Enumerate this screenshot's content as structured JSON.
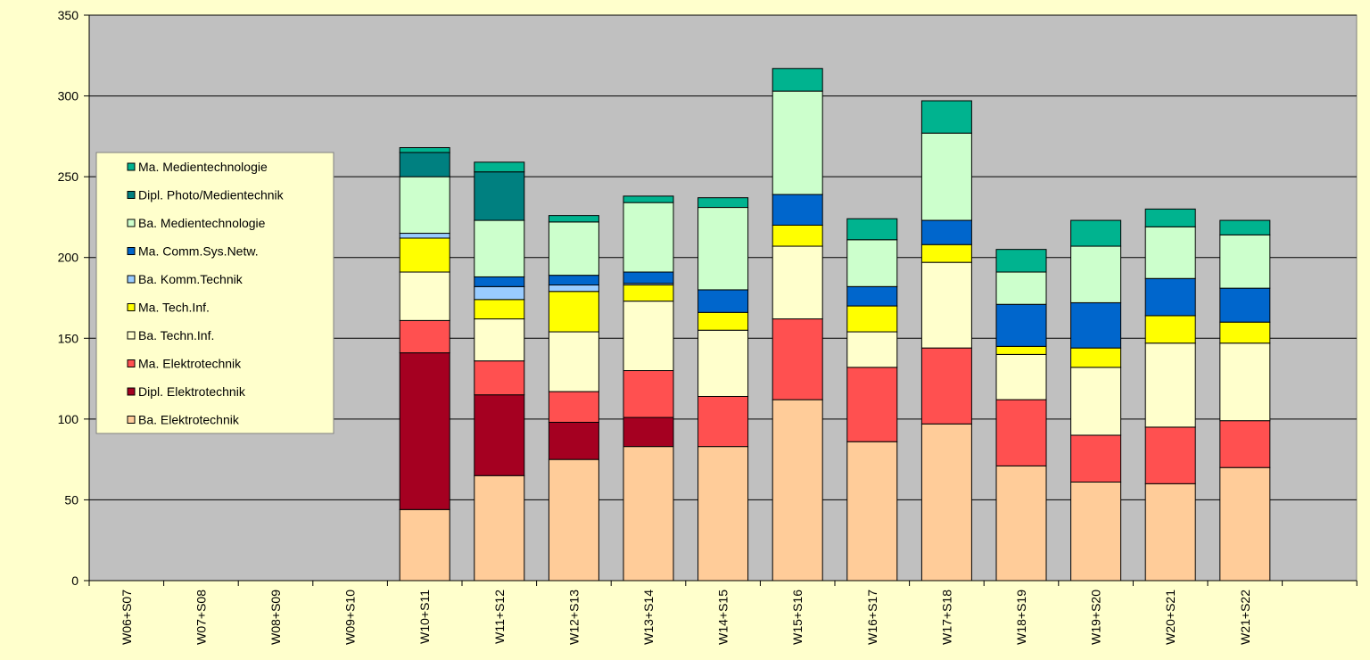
{
  "chart_data": {
    "type": "bar",
    "stacked": true,
    "title": "",
    "xlabel": "",
    "ylabel": "",
    "ylim": [
      0,
      350
    ],
    "yticks": [
      0,
      50,
      100,
      150,
      200,
      250,
      300,
      350
    ],
    "grid": true,
    "legend_position": "left",
    "categories": [
      "W06+S07",
      "W07+S08",
      "W08+S09",
      "W09+S10",
      "W10+S11",
      "W11+S12",
      "W12+S13",
      "W13+S14",
      "W14+S15",
      "W15+S16",
      "W16+S17",
      "W17+S18",
      "W18+S19",
      "W19+S20",
      "W20+S21",
      "W21+S22"
    ],
    "series": [
      {
        "name": "Ba. Elektrotechnik",
        "color": "#FFCC99",
        "values": [
          0,
          0,
          0,
          0,
          44,
          65,
          75,
          83,
          83,
          112,
          86,
          97,
          71,
          61,
          60,
          70
        ]
      },
      {
        "name": "Dipl. Elektrotechnik",
        "color": "#A50021",
        "values": [
          0,
          0,
          0,
          0,
          97,
          50,
          23,
          18,
          0,
          0,
          0,
          0,
          0,
          0,
          0,
          0
        ]
      },
      {
        "name": "Ma. Elektrotechnik",
        "color": "#FF5050",
        "values": [
          0,
          0,
          0,
          0,
          20,
          21,
          19,
          29,
          31,
          50,
          46,
          47,
          41,
          29,
          35,
          29
        ]
      },
      {
        "name": "Ba. Techn.Inf.",
        "color": "#FFFFCC",
        "values": [
          0,
          0,
          0,
          0,
          30,
          26,
          37,
          43,
          41,
          45,
          22,
          53,
          28,
          42,
          52,
          48
        ]
      },
      {
        "name": "Ma. Tech.Inf.",
        "color": "#FFFF00",
        "values": [
          0,
          0,
          0,
          0,
          21,
          12,
          25,
          10,
          11,
          13,
          16,
          11,
          5,
          12,
          17,
          13
        ]
      },
      {
        "name": "Ba. Komm.Technik",
        "color": "#99CCFF",
        "values": [
          0,
          0,
          0,
          0,
          3,
          8,
          4,
          1,
          0,
          0,
          0,
          0,
          0,
          0,
          0,
          0
        ]
      },
      {
        "name": "Ma. Comm.Sys.Netw.",
        "color": "#0066CC",
        "values": [
          0,
          0,
          0,
          0,
          0,
          6,
          6,
          7,
          14,
          19,
          12,
          15,
          26,
          28,
          23,
          21
        ]
      },
      {
        "name": "Ba. Medientechnologie",
        "color": "#CCFFCC",
        "values": [
          0,
          0,
          0,
          0,
          35,
          35,
          33,
          43,
          51,
          64,
          29,
          54,
          20,
          35,
          32,
          33
        ]
      },
      {
        "name": "Dipl. Photo/Medientechnik",
        "color": "#008080",
        "values": [
          0,
          0,
          0,
          0,
          15,
          30,
          0,
          0,
          0,
          0,
          0,
          0,
          0,
          0,
          0,
          0
        ]
      },
      {
        "name": "Ma. Medientechnologie",
        "color": "#00B38F",
        "values": [
          0,
          0,
          0,
          0,
          3,
          6,
          4,
          4,
          6,
          14,
          13,
          20,
          14,
          16,
          11,
          9
        ]
      }
    ]
  }
}
